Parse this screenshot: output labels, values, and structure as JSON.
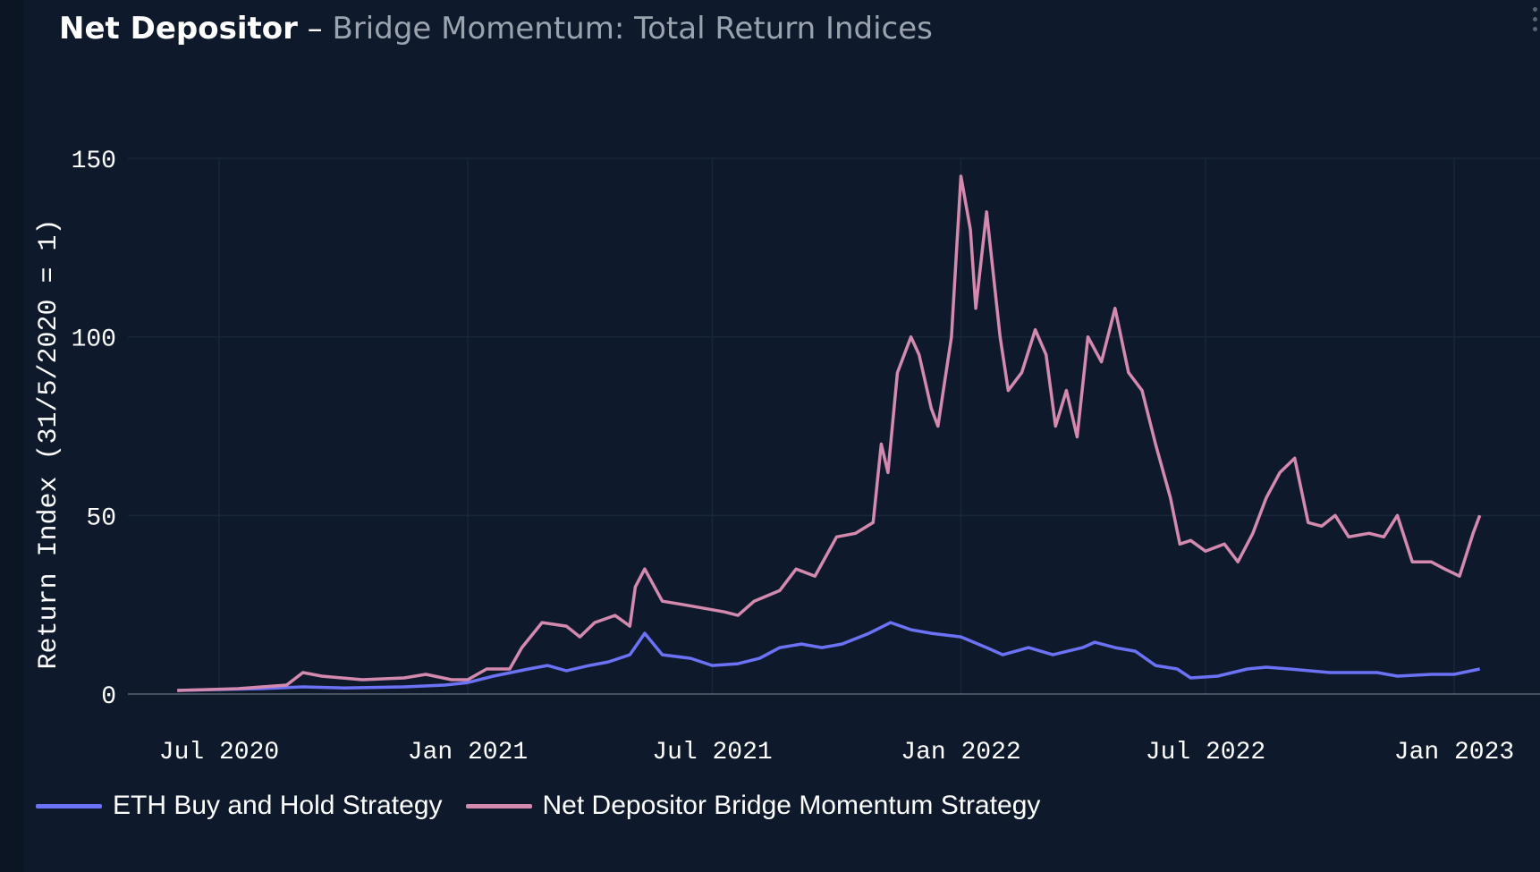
{
  "header": {
    "title": "Net Depositor",
    "separator": "–",
    "subtitle": "Bridge Momentum: Total Return Indices"
  },
  "colors": {
    "background": "#0e1a2c",
    "eth": "#6b72f5",
    "momentum": "#d48aaf"
  },
  "chart_data": {
    "type": "line",
    "title": "Net Depositor – Bridge Momentum: Total Return Indices",
    "xlabel": "",
    "ylabel": "Return Index (31/5/2020 = 1)",
    "ylim": [
      0,
      150
    ],
    "xlim": [
      "2020-05-01",
      "2023-02-15"
    ],
    "yticks": [
      0,
      50,
      100,
      150
    ],
    "xticks": [
      {
        "date": "2020-07-01",
        "label": "Jul 2020"
      },
      {
        "date": "2021-01-01",
        "label": "Jan 2021"
      },
      {
        "date": "2021-07-01",
        "label": "Jul 2021"
      },
      {
        "date": "2022-01-01",
        "label": "Jan 2022"
      },
      {
        "date": "2022-07-01",
        "label": "Jul 2022"
      },
      {
        "date": "2023-01-01",
        "label": "Jan 2023"
      }
    ],
    "grid": true,
    "legend": "bottom-left",
    "series": [
      {
        "name": "ETH Buy and Hold Strategy",
        "color": "#6b72f5",
        "points": [
          [
            "2020-05-31",
            1
          ],
          [
            "2020-08-01",
            1.5
          ],
          [
            "2020-09-01",
            2
          ],
          [
            "2020-10-01",
            1.7
          ],
          [
            "2020-11-15",
            2
          ],
          [
            "2020-12-15",
            2.5
          ],
          [
            "2021-01-01",
            3.2
          ],
          [
            "2021-01-20",
            5
          ],
          [
            "2021-02-15",
            7
          ],
          [
            "2021-03-01",
            8
          ],
          [
            "2021-03-15",
            6.5
          ],
          [
            "2021-04-01",
            8
          ],
          [
            "2021-04-15",
            9
          ],
          [
            "2021-05-01",
            11
          ],
          [
            "2021-05-12",
            17
          ],
          [
            "2021-05-25",
            11
          ],
          [
            "2021-06-15",
            10
          ],
          [
            "2021-07-01",
            8
          ],
          [
            "2021-07-20",
            8.5
          ],
          [
            "2021-08-05",
            10
          ],
          [
            "2021-08-20",
            13
          ],
          [
            "2021-09-05",
            14
          ],
          [
            "2021-09-20",
            13
          ],
          [
            "2021-10-05",
            14
          ],
          [
            "2021-10-25",
            17
          ],
          [
            "2021-11-10",
            20
          ],
          [
            "2021-11-25",
            18
          ],
          [
            "2021-12-10",
            17
          ],
          [
            "2022-01-01",
            16
          ],
          [
            "2022-01-20",
            13
          ],
          [
            "2022-02-01",
            11
          ],
          [
            "2022-02-20",
            13
          ],
          [
            "2022-03-10",
            11
          ],
          [
            "2022-04-01",
            13
          ],
          [
            "2022-04-10",
            14.5
          ],
          [
            "2022-04-25",
            13
          ],
          [
            "2022-05-10",
            12
          ],
          [
            "2022-05-25",
            8
          ],
          [
            "2022-06-10",
            7
          ],
          [
            "2022-06-20",
            4.5
          ],
          [
            "2022-07-10",
            5
          ],
          [
            "2022-08-01",
            7
          ],
          [
            "2022-08-15",
            7.5
          ],
          [
            "2022-09-01",
            7
          ],
          [
            "2022-10-01",
            6
          ],
          [
            "2022-11-05",
            6
          ],
          [
            "2022-11-20",
            5
          ],
          [
            "2022-12-15",
            5.5
          ],
          [
            "2023-01-01",
            5.5
          ],
          [
            "2023-01-20",
            7
          ]
        ]
      },
      {
        "name": "Net Depositor Bridge Momentum Strategy",
        "color": "#d48aaf",
        "points": [
          [
            "2020-05-31",
            1
          ],
          [
            "2020-07-15",
            1.5
          ],
          [
            "2020-08-20",
            2.5
          ],
          [
            "2020-09-01",
            6
          ],
          [
            "2020-09-15",
            5
          ],
          [
            "2020-10-15",
            4
          ],
          [
            "2020-11-15",
            4.5
          ],
          [
            "2020-12-01",
            5.5
          ],
          [
            "2020-12-20",
            4
          ],
          [
            "2021-01-01",
            4
          ],
          [
            "2021-01-15",
            7
          ],
          [
            "2021-02-01",
            7
          ],
          [
            "2021-02-10",
            13
          ],
          [
            "2021-02-25",
            20
          ],
          [
            "2021-03-15",
            19
          ],
          [
            "2021-03-25",
            16
          ],
          [
            "2021-04-05",
            20
          ],
          [
            "2021-04-20",
            22
          ],
          [
            "2021-05-01",
            19
          ],
          [
            "2021-05-05",
            30
          ],
          [
            "2021-05-12",
            35
          ],
          [
            "2021-05-25",
            26
          ],
          [
            "2021-06-10",
            25
          ],
          [
            "2021-06-25",
            24
          ],
          [
            "2021-07-10",
            23
          ],
          [
            "2021-07-20",
            22
          ],
          [
            "2021-08-01",
            26
          ],
          [
            "2021-08-20",
            29
          ],
          [
            "2021-09-01",
            35
          ],
          [
            "2021-09-15",
            33
          ],
          [
            "2021-10-01",
            44
          ],
          [
            "2021-10-15",
            45
          ],
          [
            "2021-10-28",
            48
          ],
          [
            "2021-11-03",
            70
          ],
          [
            "2021-11-08",
            62
          ],
          [
            "2021-11-15",
            90
          ],
          [
            "2021-11-25",
            100
          ],
          [
            "2021-12-01",
            95
          ],
          [
            "2021-12-10",
            80
          ],
          [
            "2021-12-15",
            75
          ],
          [
            "2021-12-25",
            100
          ],
          [
            "2022-01-01",
            145
          ],
          [
            "2022-01-08",
            130
          ],
          [
            "2022-01-12",
            108
          ],
          [
            "2022-01-20",
            135
          ],
          [
            "2022-01-30",
            100
          ],
          [
            "2022-02-05",
            85
          ],
          [
            "2022-02-15",
            90
          ],
          [
            "2022-02-25",
            102
          ],
          [
            "2022-03-05",
            95
          ],
          [
            "2022-03-12",
            75
          ],
          [
            "2022-03-20",
            85
          ],
          [
            "2022-03-28",
            72
          ],
          [
            "2022-04-05",
            100
          ],
          [
            "2022-04-15",
            93
          ],
          [
            "2022-04-25",
            108
          ],
          [
            "2022-05-05",
            90
          ],
          [
            "2022-05-15",
            85
          ],
          [
            "2022-05-25",
            70
          ],
          [
            "2022-06-05",
            55
          ],
          [
            "2022-06-12",
            42
          ],
          [
            "2022-06-20",
            43
          ],
          [
            "2022-07-01",
            40
          ],
          [
            "2022-07-15",
            42
          ],
          [
            "2022-07-25",
            37
          ],
          [
            "2022-08-05",
            45
          ],
          [
            "2022-08-15",
            55
          ],
          [
            "2022-08-25",
            62
          ],
          [
            "2022-09-05",
            66
          ],
          [
            "2022-09-15",
            48
          ],
          [
            "2022-09-25",
            47
          ],
          [
            "2022-10-05",
            50
          ],
          [
            "2022-10-15",
            44
          ],
          [
            "2022-10-30",
            45
          ],
          [
            "2022-11-10",
            44
          ],
          [
            "2022-11-20",
            50
          ],
          [
            "2022-12-01",
            37
          ],
          [
            "2022-12-15",
            37
          ],
          [
            "2022-12-25",
            35
          ],
          [
            "2023-01-05",
            33
          ],
          [
            "2023-01-15",
            45
          ],
          [
            "2023-01-20",
            50
          ]
        ]
      }
    ]
  }
}
